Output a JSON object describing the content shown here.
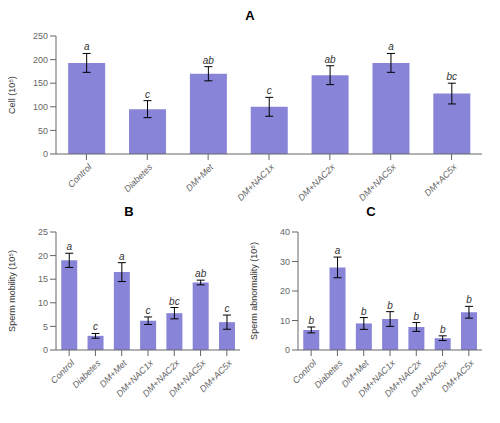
{
  "chart_data": [
    {
      "type": "bar",
      "title": "A",
      "categories": [
        "Control",
        "Diabetes",
        "DM+Met",
        "DM+NAC1x",
        "DM+NAC2x",
        "DM+NAC5x",
        "DM+AC5x"
      ],
      "values": [
        193,
        95,
        170,
        100,
        167,
        193,
        128
      ],
      "errors": [
        20,
        18,
        15,
        20,
        20,
        20,
        22
      ],
      "annotations": [
        "a",
        "c",
        "ab",
        "c",
        "ab",
        "a",
        "bc"
      ],
      "ylabel": "Cell (10⁵)",
      "ylim": [
        0,
        250
      ],
      "yticks": [
        0,
        50,
        100,
        150,
        200,
        250
      ],
      "color": "#8884d8",
      "grid": false
    },
    {
      "type": "bar",
      "title": "B",
      "categories": [
        "Control",
        "Diabetes",
        "DM+Met",
        "DM+NAC1x",
        "DM+NAC2x",
        "DM+NAC5x",
        "DM+AC5x"
      ],
      "values": [
        19.0,
        3.0,
        16.5,
        6.2,
        7.8,
        14.3,
        5.9
      ],
      "errors": [
        1.5,
        0.5,
        2.0,
        0.8,
        1.2,
        0.5,
        1.5
      ],
      "annotations": [
        "a",
        "c",
        "a",
        "c",
        "bc",
        "ab",
        "c"
      ],
      "ylabel": "Sperm mobility (10⁵)",
      "ylim": [
        0,
        25
      ],
      "yticks": [
        0,
        5,
        10,
        15,
        20,
        25
      ],
      "color": "#8884d8",
      "grid": false
    },
    {
      "type": "bar",
      "title": "C",
      "categories": [
        "Control",
        "Diabetes",
        "DM+Met",
        "DM+NAC1x",
        "DM+NAC2x",
        "DM+NAC5x",
        "DM+AC5x"
      ],
      "values": [
        6.8,
        28.0,
        9.0,
        10.5,
        7.8,
        4.0,
        12.8
      ],
      "errors": [
        1.0,
        3.5,
        2.0,
        2.5,
        1.5,
        0.8,
        2.0
      ],
      "annotations": [
        "b",
        "a",
        "b",
        "b",
        "b",
        "b",
        "b"
      ],
      "ylabel": "Sperm abnormality (10⁵)",
      "ylim": [
        0,
        40
      ],
      "yticks": [
        0,
        10,
        20,
        30,
        40
      ],
      "color": "#8884d8",
      "grid": false
    }
  ]
}
